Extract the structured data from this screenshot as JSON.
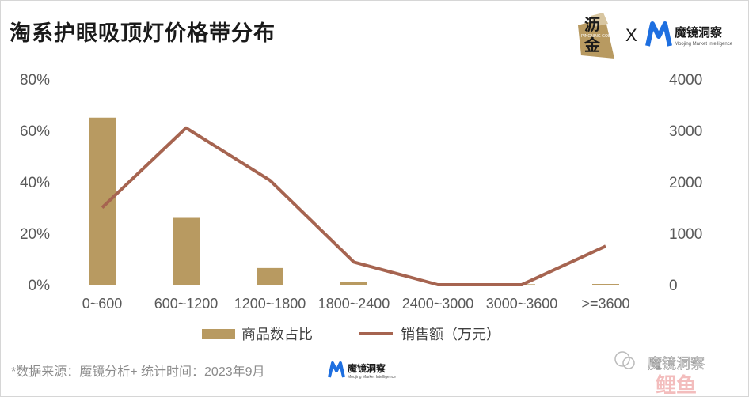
{
  "title": "淘系护眼吸顶灯价格带分布",
  "brand": {
    "left_logo_text_top": "沥",
    "left_logo_text_bottom": "金",
    "left_logo_small": "PINGNING GOLD",
    "separator": "X",
    "right_logo_name": "魔镜洞察",
    "right_logo_sub": "Moojing Market Intelligence"
  },
  "footnote": "*数据来源：魔镜分析+   统计时间：2023年9月",
  "footer_logo": {
    "name": "魔镜洞察",
    "sub": "Moojing Market Intelligence"
  },
  "watermark": {
    "account": "魔镜洞察",
    "stamp": "鲤鱼"
  },
  "colors": {
    "bar": "#b89a61",
    "line": "#a66450",
    "axis": "#d9d9d9",
    "tick_text": "#595959",
    "brand_blue": "#1e6fe0"
  },
  "chart_data": {
    "type": "bar",
    "categories": [
      "0~600",
      "600~1200",
      "1200~1800",
      "1800~2400",
      "2400~3000",
      "3000~3600",
      ">=3600"
    ],
    "series": [
      {
        "name": "商品数占比",
        "type": "bar",
        "axis": "left",
        "values": [
          0.65,
          0.26,
          0.065,
          0.01,
          0.0,
          0.002,
          0.003
        ]
      },
      {
        "name": "销售额（万元）",
        "type": "line",
        "axis": "right",
        "values": [
          1500,
          3050,
          2030,
          440,
          0,
          0,
          750
        ]
      }
    ],
    "y_left": {
      "ylim": [
        0,
        0.8
      ],
      "ticks": [
        0,
        0.2,
        0.4,
        0.6,
        0.8
      ],
      "tick_labels": [
        "0%",
        "20%",
        "40%",
        "60%",
        "80%"
      ]
    },
    "y_right": {
      "ylim": [
        0,
        4000
      ],
      "ticks": [
        0,
        1000,
        2000,
        3000,
        4000
      ],
      "tick_labels": [
        "0",
        "1000",
        "2000",
        "3000",
        "4000"
      ]
    },
    "grid": false,
    "legend": "bottom-center"
  }
}
